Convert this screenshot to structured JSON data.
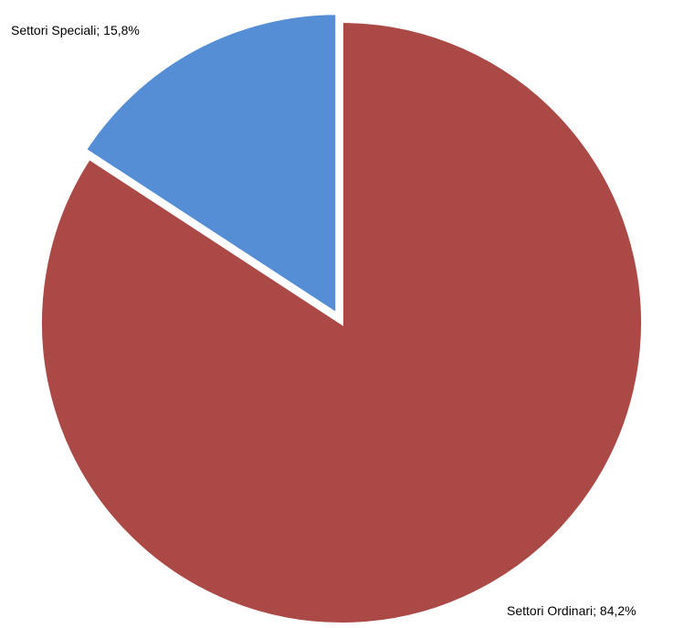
{
  "chart_data": {
    "type": "pie",
    "title": "",
    "start_angle_deg": 0,
    "direction": "clockwise",
    "legend": "none",
    "slices": [
      {
        "name": "Settori Ordinari",
        "value": 84.2,
        "label": "Settori Ordinari; 84,2%",
        "color": "#AB4946"
      },
      {
        "name": "Settori Speciali",
        "value": 15.8,
        "label": "Settori Speciali; 15,8%",
        "color": "#558ED5"
      }
    ]
  }
}
